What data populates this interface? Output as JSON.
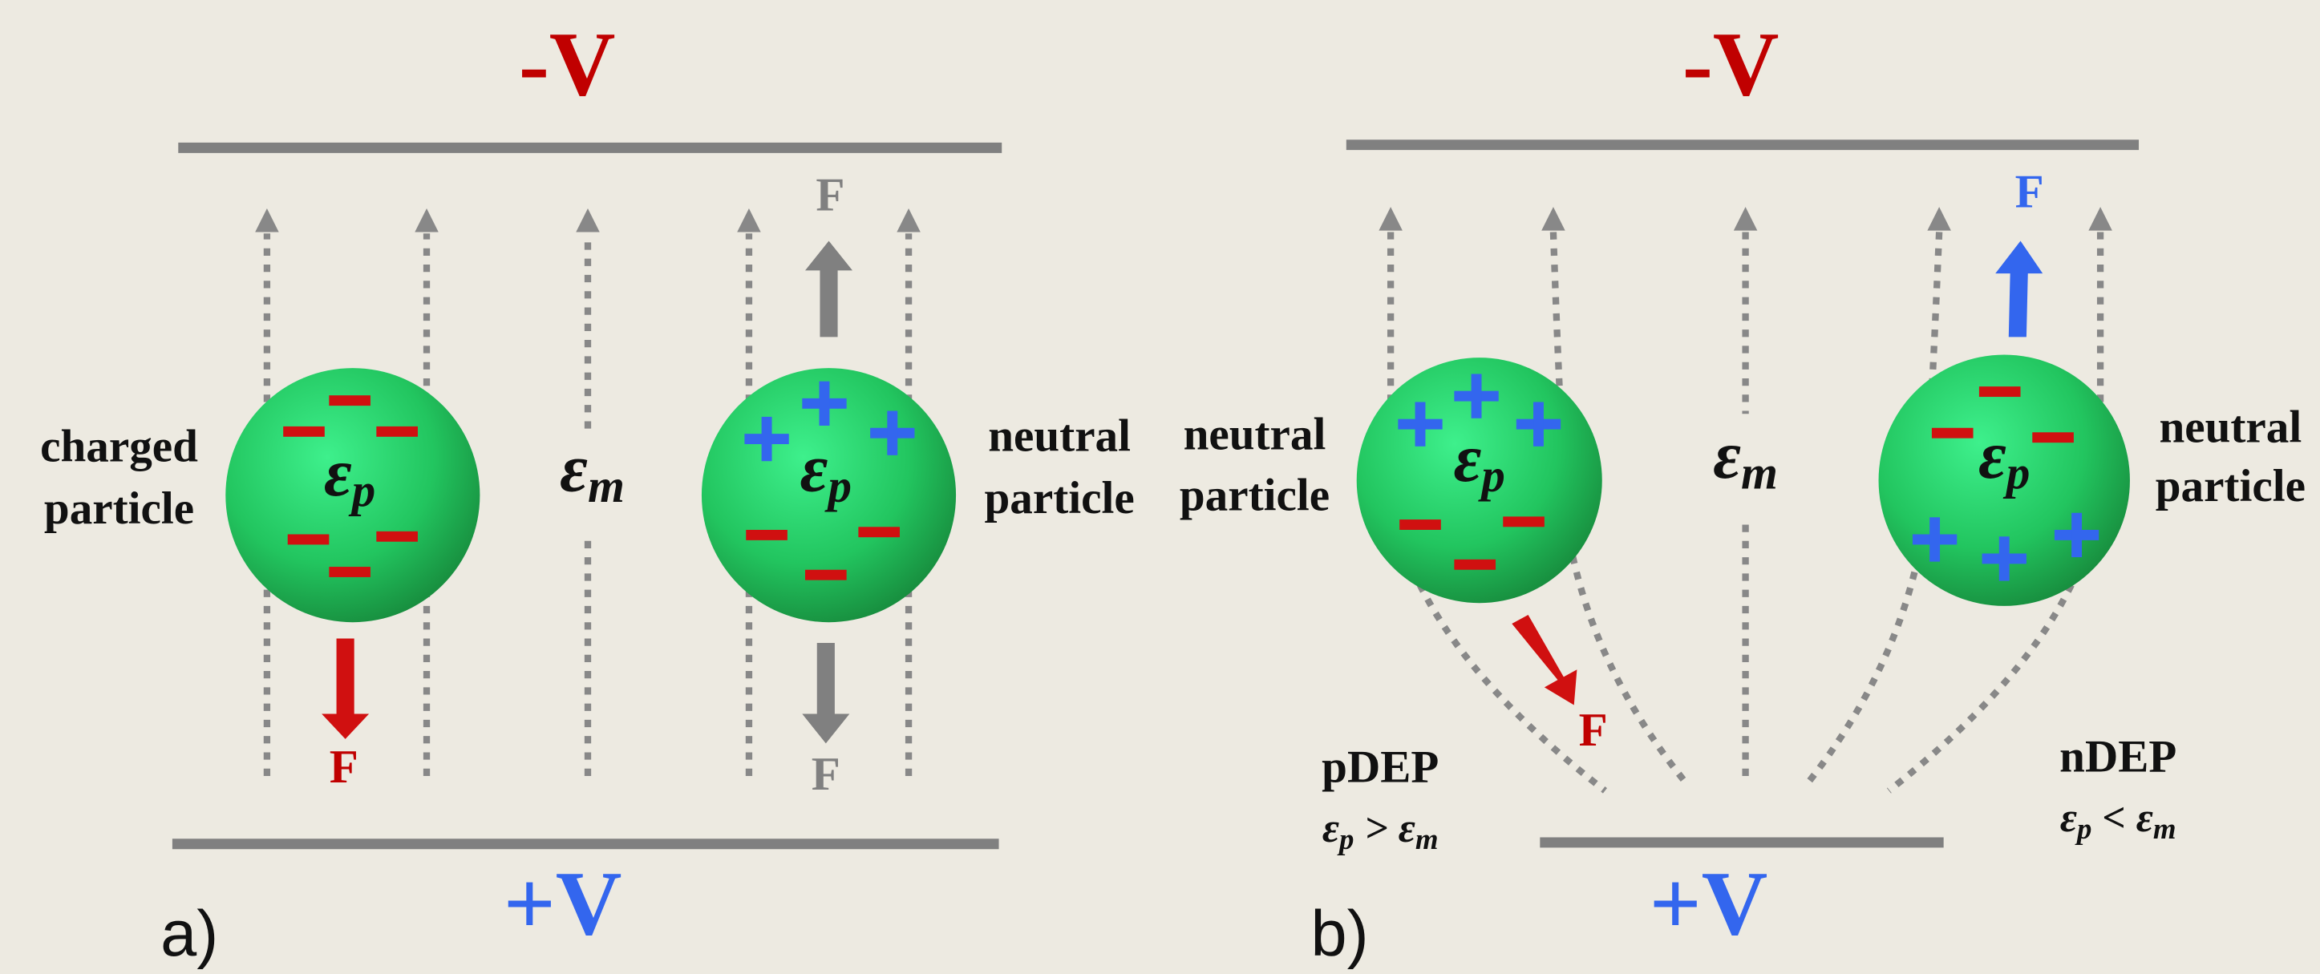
{
  "panels": [
    {
      "label": "a)",
      "top_electrode": "-V",
      "bottom_electrode": "+V",
      "medium": {
        "symbol": "ε",
        "subscript": "m"
      },
      "particles": [
        {
          "label": [
            "charged",
            "particle"
          ],
          "permittivity": {
            "symbol": "ε",
            "subscript": "p"
          },
          "force": "F"
        },
        {
          "label": [
            "neutral",
            "particle"
          ],
          "permittivity": {
            "symbol": "ε",
            "subscript": "p"
          },
          "forces": [
            "F",
            "F"
          ]
        }
      ]
    },
    {
      "label": "b)",
      "top_electrode": "-V",
      "bottom_electrode": "+V",
      "medium": {
        "symbol": "ε",
        "subscript": "m"
      },
      "particles": [
        {
          "label": [
            "neutral",
            "particle"
          ],
          "permittivity": {
            "symbol": "ε",
            "subscript": "p"
          },
          "force": "F",
          "mode": "pDEP",
          "condition": [
            "ε",
            "p",
            " > ",
            "ε",
            "m"
          ]
        },
        {
          "label": [
            "neutral",
            "particle"
          ],
          "permittivity": {
            "symbol": "ε",
            "subscript": "p"
          },
          "force": "F",
          "mode": "nDEP",
          "condition": [
            "ε",
            "p",
            " < ",
            "ε",
            "m"
          ]
        }
      ]
    }
  ]
}
